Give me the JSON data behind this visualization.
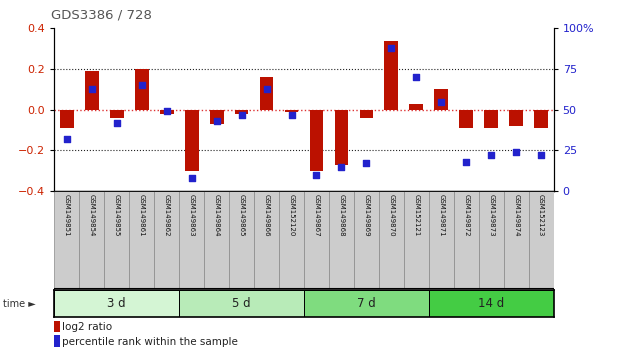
{
  "title": "GDS3386 / 728",
  "samples": [
    "GSM149851",
    "GSM149854",
    "GSM149855",
    "GSM149861",
    "GSM149862",
    "GSM149863",
    "GSM149864",
    "GSM149865",
    "GSM149866",
    "GSM152120",
    "GSM149867",
    "GSM149868",
    "GSM149869",
    "GSM149870",
    "GSM152121",
    "GSM149871",
    "GSM149872",
    "GSM149873",
    "GSM149874",
    "GSM152123"
  ],
  "log2_ratio": [
    -0.09,
    0.19,
    -0.04,
    0.2,
    -0.02,
    -0.3,
    -0.07,
    -0.02,
    0.16,
    -0.01,
    -0.3,
    -0.27,
    -0.04,
    0.34,
    0.03,
    0.1,
    -0.09,
    -0.09,
    -0.08,
    -0.09
  ],
  "percentile_rank": [
    32,
    63,
    42,
    65,
    49,
    8,
    43,
    47,
    63,
    47,
    10,
    15,
    17,
    88,
    70,
    55,
    18,
    22,
    24,
    22
  ],
  "groups": [
    {
      "label": "3 d",
      "start": 0,
      "end": 5,
      "color": "#d4f5d4"
    },
    {
      "label": "5 d",
      "start": 5,
      "end": 10,
      "color": "#b8ebb8"
    },
    {
      "label": "7 d",
      "start": 10,
      "end": 15,
      "color": "#7fdc7f"
    },
    {
      "label": "14 d",
      "start": 15,
      "end": 20,
      "color": "#44cc44"
    }
  ],
  "ylim_left": [
    -0.4,
    0.4
  ],
  "ylim_right": [
    0,
    100
  ],
  "bar_color": "#bb1100",
  "dot_color": "#2222cc",
  "zero_line_color": "#dd3333",
  "grid_color": "#222222",
  "bg_color": "#ffffff",
  "left_tick_color": "#cc2200",
  "right_tick_color": "#2222cc",
  "legend_bar_label": "log2 ratio",
  "legend_dot_label": "percentile rank within the sample",
  "left_yticks": [
    -0.4,
    -0.2,
    0.0,
    0.2,
    0.4
  ],
  "right_yticks": [
    0,
    25,
    50,
    75,
    100
  ],
  "right_yticklabels": [
    "0",
    "25",
    "50",
    "75",
    "100%"
  ],
  "label_cell_color": "#cccccc",
  "label_cell_border": "#888888"
}
